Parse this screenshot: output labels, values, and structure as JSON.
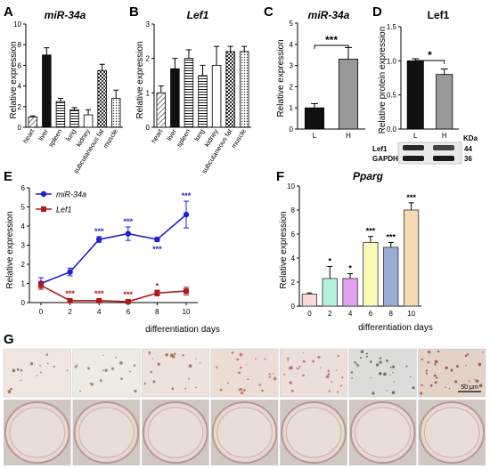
{
  "panels": {
    "A": {
      "letter": "A",
      "chart_data": {
        "type": "bar",
        "title": "miR-34a",
        "ylabel": "Relative expression",
        "categories": [
          "heart",
          "liver",
          "spleen",
          "lung",
          "kidney",
          "subcutaneous fat",
          "muscle"
        ],
        "values": [
          1.0,
          7.0,
          2.5,
          1.7,
          1.2,
          5.5,
          2.8
        ],
        "errors": [
          0.1,
          0.7,
          0.3,
          0.2,
          0.5,
          0.6,
          0.8
        ],
        "fills": [
          "lines-diag",
          "black",
          "lines-horiz",
          "lines-horiz",
          "white",
          "checker",
          "dots"
        ],
        "ylim": [
          0,
          10
        ],
        "yticks": [
          "0",
          "2",
          "4",
          "6",
          "8",
          "10"
        ]
      }
    },
    "B": {
      "letter": "B",
      "chart_data": {
        "type": "bar",
        "title": "Lef1",
        "ylabel": "Relative expression",
        "categories": [
          "heart",
          "liver",
          "spleen",
          "lung",
          "kidney",
          "subcutaneous fat",
          "muscle"
        ],
        "values": [
          1.0,
          1.7,
          2.0,
          1.5,
          1.8,
          2.2,
          2.2
        ],
        "errors": [
          0.2,
          0.3,
          0.25,
          0.3,
          0.55,
          0.15,
          0.15
        ],
        "fills": [
          "lines-diag",
          "black",
          "lines-horiz",
          "lines-horiz",
          "white",
          "checker",
          "dots"
        ],
        "ylim": [
          0,
          3
        ],
        "yticks": [
          "0",
          "1",
          "2",
          "3"
        ]
      }
    },
    "C": {
      "letter": "C",
      "chart_data": {
        "type": "bar",
        "title": "miR-34a",
        "ylabel": "Relative expression",
        "categories": [
          "L",
          "H"
        ],
        "values": [
          1.0,
          3.3
        ],
        "errors": [
          0.2,
          0.55
        ],
        "fills": [
          "black",
          "gray"
        ],
        "ylim": [
          0,
          5
        ],
        "yticks": [
          "0",
          "1",
          "2",
          "3",
          "4",
          "5"
        ],
        "significance": "***"
      }
    },
    "D": {
      "letter": "D",
      "chart_data": {
        "type": "bar",
        "title": "Lef1",
        "ylabel": "Relative protein expression",
        "categories": [
          "L",
          "H"
        ],
        "values": [
          1.0,
          0.8
        ],
        "errors": [
          0.03,
          0.08
        ],
        "fills": [
          "black",
          "gray"
        ],
        "ylim": [
          0,
          1.5
        ],
        "yticks": [
          "0.0",
          "0.5",
          "1.0",
          "1.5"
        ],
        "significance": "*"
      },
      "blot": {
        "kda_header": "KDa",
        "rows": [
          {
            "label": "Lef1",
            "kda": "44"
          },
          {
            "label": "GAPDH",
            "kda": "36"
          }
        ]
      }
    },
    "E": {
      "letter": "E",
      "chart_data": {
        "type": "line",
        "ylabel": "Relative expression",
        "xlabel": "differentiation days",
        "x": [
          0,
          2,
          4,
          6,
          8,
          10
        ],
        "xticks": [
          "0",
          "2",
          "4",
          "6",
          "8",
          "10"
        ],
        "ylim": [
          0,
          6
        ],
        "yticks": [
          "0",
          "1",
          "2",
          "3",
          "4",
          "5",
          "6"
        ],
        "legend_position": "top-left",
        "series": [
          {
            "name": "miR-34a",
            "color": "#1f1fd0",
            "marker": "circle",
            "values": [
              1.0,
              1.6,
              3.3,
              3.6,
              3.3,
              4.6
            ],
            "errors": [
              0.3,
              0.2,
              0.15,
              0.35,
              0.1,
              0.7
            ],
            "annotations": [
              "",
              "",
              "***",
              "***",
              "***",
              "***"
            ]
          },
          {
            "name": "Lef1",
            "color": "#b01818",
            "marker": "square",
            "values": [
              0.9,
              0.1,
              0.1,
              0.05,
              0.5,
              0.6
            ],
            "errors": [
              0.2,
              0.05,
              0.05,
              0.05,
              0.15,
              0.2
            ],
            "annotations": [
              "",
              "***",
              "***",
              "***",
              "*",
              ""
            ]
          }
        ]
      }
    },
    "F": {
      "letter": "F",
      "chart_data": {
        "type": "bar",
        "title": "Pparg",
        "ylabel": "Relative expression",
        "xlabel": "differentiation days",
        "categories": [
          "0",
          "2",
          "4",
          "6",
          "8",
          "10"
        ],
        "values": [
          1.0,
          2.3,
          2.3,
          5.3,
          4.9,
          8.0
        ],
        "errors": [
          0.1,
          1.0,
          0.4,
          0.5,
          0.4,
          0.6
        ],
        "colors": [
          "#fbd9d9",
          "#b5f0df",
          "#e3a1f0",
          "#fbfbb7",
          "#99add2",
          "#f6d8b3"
        ],
        "annotations": [
          "",
          "*",
          "*",
          "***",
          "***",
          "***"
        ],
        "ylim": [
          0,
          10
        ],
        "yticks": [
          "0",
          "2",
          "4",
          "6",
          "8",
          "10"
        ]
      }
    },
    "G": {
      "letter": "G",
      "scale_bar": "50 μm",
      "wells": 7
    }
  }
}
